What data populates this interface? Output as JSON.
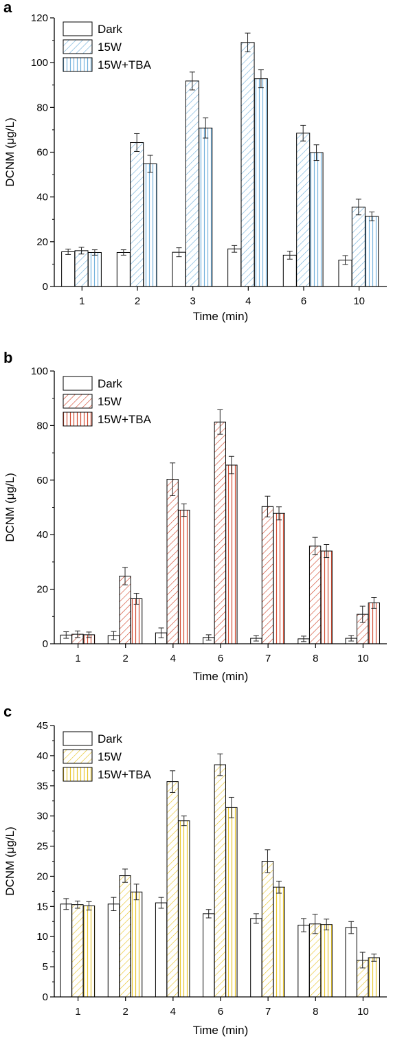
{
  "colors": {
    "dark_fill": "#ffffff",
    "outline": "#000000",
    "panel_a": "#74b2dc",
    "panel_b": "#d24a30",
    "panel_c": "#e8c52c"
  },
  "chart_data": [
    {
      "type": "bar",
      "panel_label": "a",
      "xlabel": "Time (min)",
      "ylabel": "DCNM (μg/L)",
      "ylim": [
        0,
        120
      ],
      "yticks": [
        "0",
        "20",
        "40",
        "60",
        "80",
        "100",
        "120"
      ],
      "grid": false,
      "legend_position": "top-left",
      "accent": "#74b2dc",
      "categories": [
        "1",
        "2",
        "3",
        "4",
        "6",
        "10"
      ],
      "series": [
        {
          "name": "Dark",
          "pattern": "none",
          "values": [
            15.5,
            15.2,
            15.3,
            16.8,
            14.0,
            11.8
          ],
          "errors": [
            1.2,
            1.2,
            2.0,
            1.5,
            1.8,
            2.0
          ]
        },
        {
          "name": "15W",
          "pattern": "diagonal",
          "values": [
            16.0,
            64.3,
            91.8,
            109.0,
            68.5,
            35.5
          ],
          "errors": [
            1.5,
            4.0,
            4.0,
            4.2,
            3.5,
            3.5
          ]
        },
        {
          "name": "15W+TBA",
          "pattern": "vertical",
          "values": [
            15.2,
            54.8,
            70.8,
            92.8,
            59.8,
            31.3
          ],
          "errors": [
            1.2,
            3.8,
            4.5,
            4.0,
            3.5,
            2.0
          ]
        }
      ]
    },
    {
      "type": "bar",
      "panel_label": "b",
      "xlabel": "Time (min)",
      "ylabel": "DCNM (μg/L)",
      "ylim": [
        0,
        100
      ],
      "yticks": [
        "0",
        "20",
        "40",
        "60",
        "80",
        "100"
      ],
      "grid": false,
      "legend_position": "top-left",
      "accent": "#d24a30",
      "categories": [
        "1",
        "2",
        "4",
        "6",
        "7",
        "8",
        "10"
      ],
      "series": [
        {
          "name": "Dark",
          "pattern": "none",
          "values": [
            3.2,
            3.0,
            4.0,
            2.3,
            2.0,
            1.8,
            2.0
          ],
          "errors": [
            1.2,
            1.5,
            1.8,
            1.0,
            1.0,
            1.0,
            1.0
          ]
        },
        {
          "name": "15W",
          "pattern": "diagonal",
          "values": [
            3.5,
            24.8,
            60.3,
            81.3,
            50.3,
            35.8,
            10.8
          ],
          "errors": [
            1.2,
            3.2,
            6.0,
            4.5,
            3.8,
            3.2,
            3.0
          ]
        },
        {
          "name": "15W+TBA",
          "pattern": "vertical",
          "values": [
            3.3,
            16.5,
            49.0,
            65.5,
            47.8,
            34.0,
            15.0
          ],
          "errors": [
            1.0,
            2.0,
            2.3,
            3.2,
            2.4,
            2.4,
            2.0
          ]
        }
      ]
    },
    {
      "type": "bar",
      "panel_label": "c",
      "xlabel": "Time (min)",
      "ylabel": "DCNM (μg/L)",
      "ylim": [
        0,
        45
      ],
      "yticks": [
        "0",
        "5",
        "10",
        "15",
        "20",
        "25",
        "30",
        "35",
        "40",
        "45"
      ],
      "grid": false,
      "legend_position": "top-left",
      "accent": "#e8c52c",
      "categories": [
        "1",
        "2",
        "4",
        "6",
        "7",
        "8",
        "10"
      ],
      "series": [
        {
          "name": "Dark",
          "pattern": "none",
          "values": [
            15.4,
            15.4,
            15.6,
            13.8,
            13.0,
            11.9,
            11.5
          ],
          "errors": [
            0.9,
            1.1,
            0.9,
            0.7,
            0.8,
            1.1,
            1.0
          ]
        },
        {
          "name": "15W",
          "pattern": "diagonal",
          "values": [
            15.3,
            20.1,
            35.7,
            38.5,
            22.5,
            12.1,
            6.1
          ],
          "errors": [
            0.6,
            1.1,
            1.8,
            1.8,
            1.9,
            1.6,
            1.3
          ]
        },
        {
          "name": "15W+TBA",
          "pattern": "vertical",
          "values": [
            15.1,
            17.4,
            29.2,
            31.4,
            18.2,
            12.0,
            6.5
          ],
          "errors": [
            0.7,
            1.3,
            0.8,
            1.7,
            1.0,
            0.9,
            0.6
          ]
        }
      ]
    }
  ]
}
